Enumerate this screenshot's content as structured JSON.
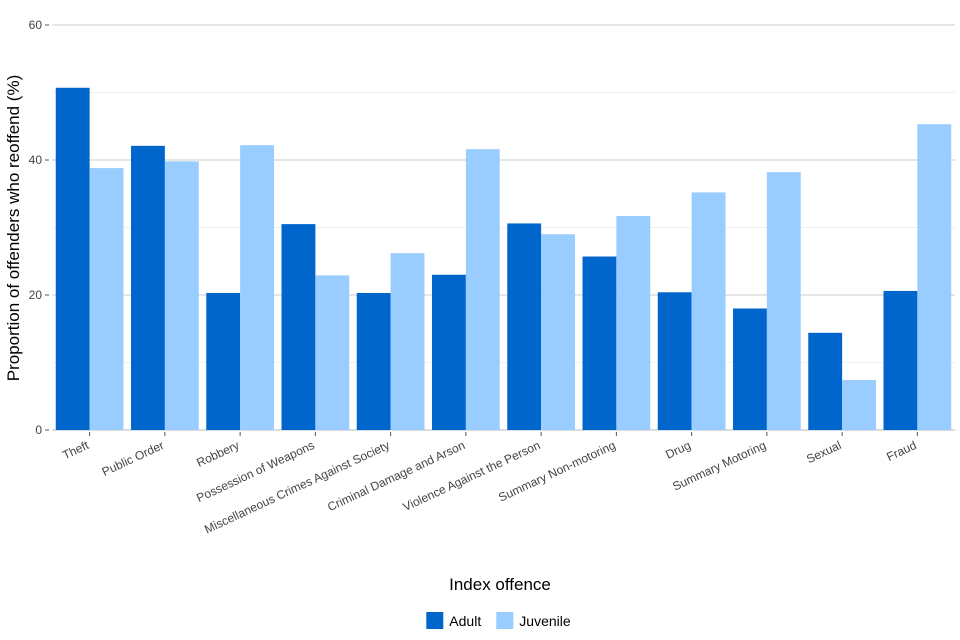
{
  "chart_data": {
    "type": "bar",
    "title": "",
    "xlabel": "Index offence",
    "ylabel": "Proportion of offenders who reoffend (%)",
    "ylim": [
      0,
      60
    ],
    "yticks": [
      0,
      20,
      40,
      60
    ],
    "grid": "horizontal",
    "legend_position": "bottom",
    "categories": [
      "Theft",
      "Public Order",
      "Robbery",
      "Possession of Weapons",
      "Miscellaneous Crimes Against Society",
      "Criminal Damage and Arson",
      "Violence Against the Person",
      "Summary Non-motoring",
      "Drug",
      "Summary Motoring",
      "Sexual",
      "Fraud"
    ],
    "series": [
      {
        "name": "Adult",
        "color": "#0066cc",
        "values": [
          50.7,
          42.1,
          20.3,
          30.5,
          20.3,
          23.0,
          30.6,
          25.7,
          20.4,
          18.0,
          14.4,
          20.6
        ]
      },
      {
        "name": "Juvenile",
        "color": "#99ccff",
        "values": [
          38.8,
          39.8,
          42.2,
          22.9,
          26.2,
          41.6,
          29.0,
          31.7,
          35.2,
          38.2,
          7.4,
          45.3
        ]
      }
    ]
  }
}
